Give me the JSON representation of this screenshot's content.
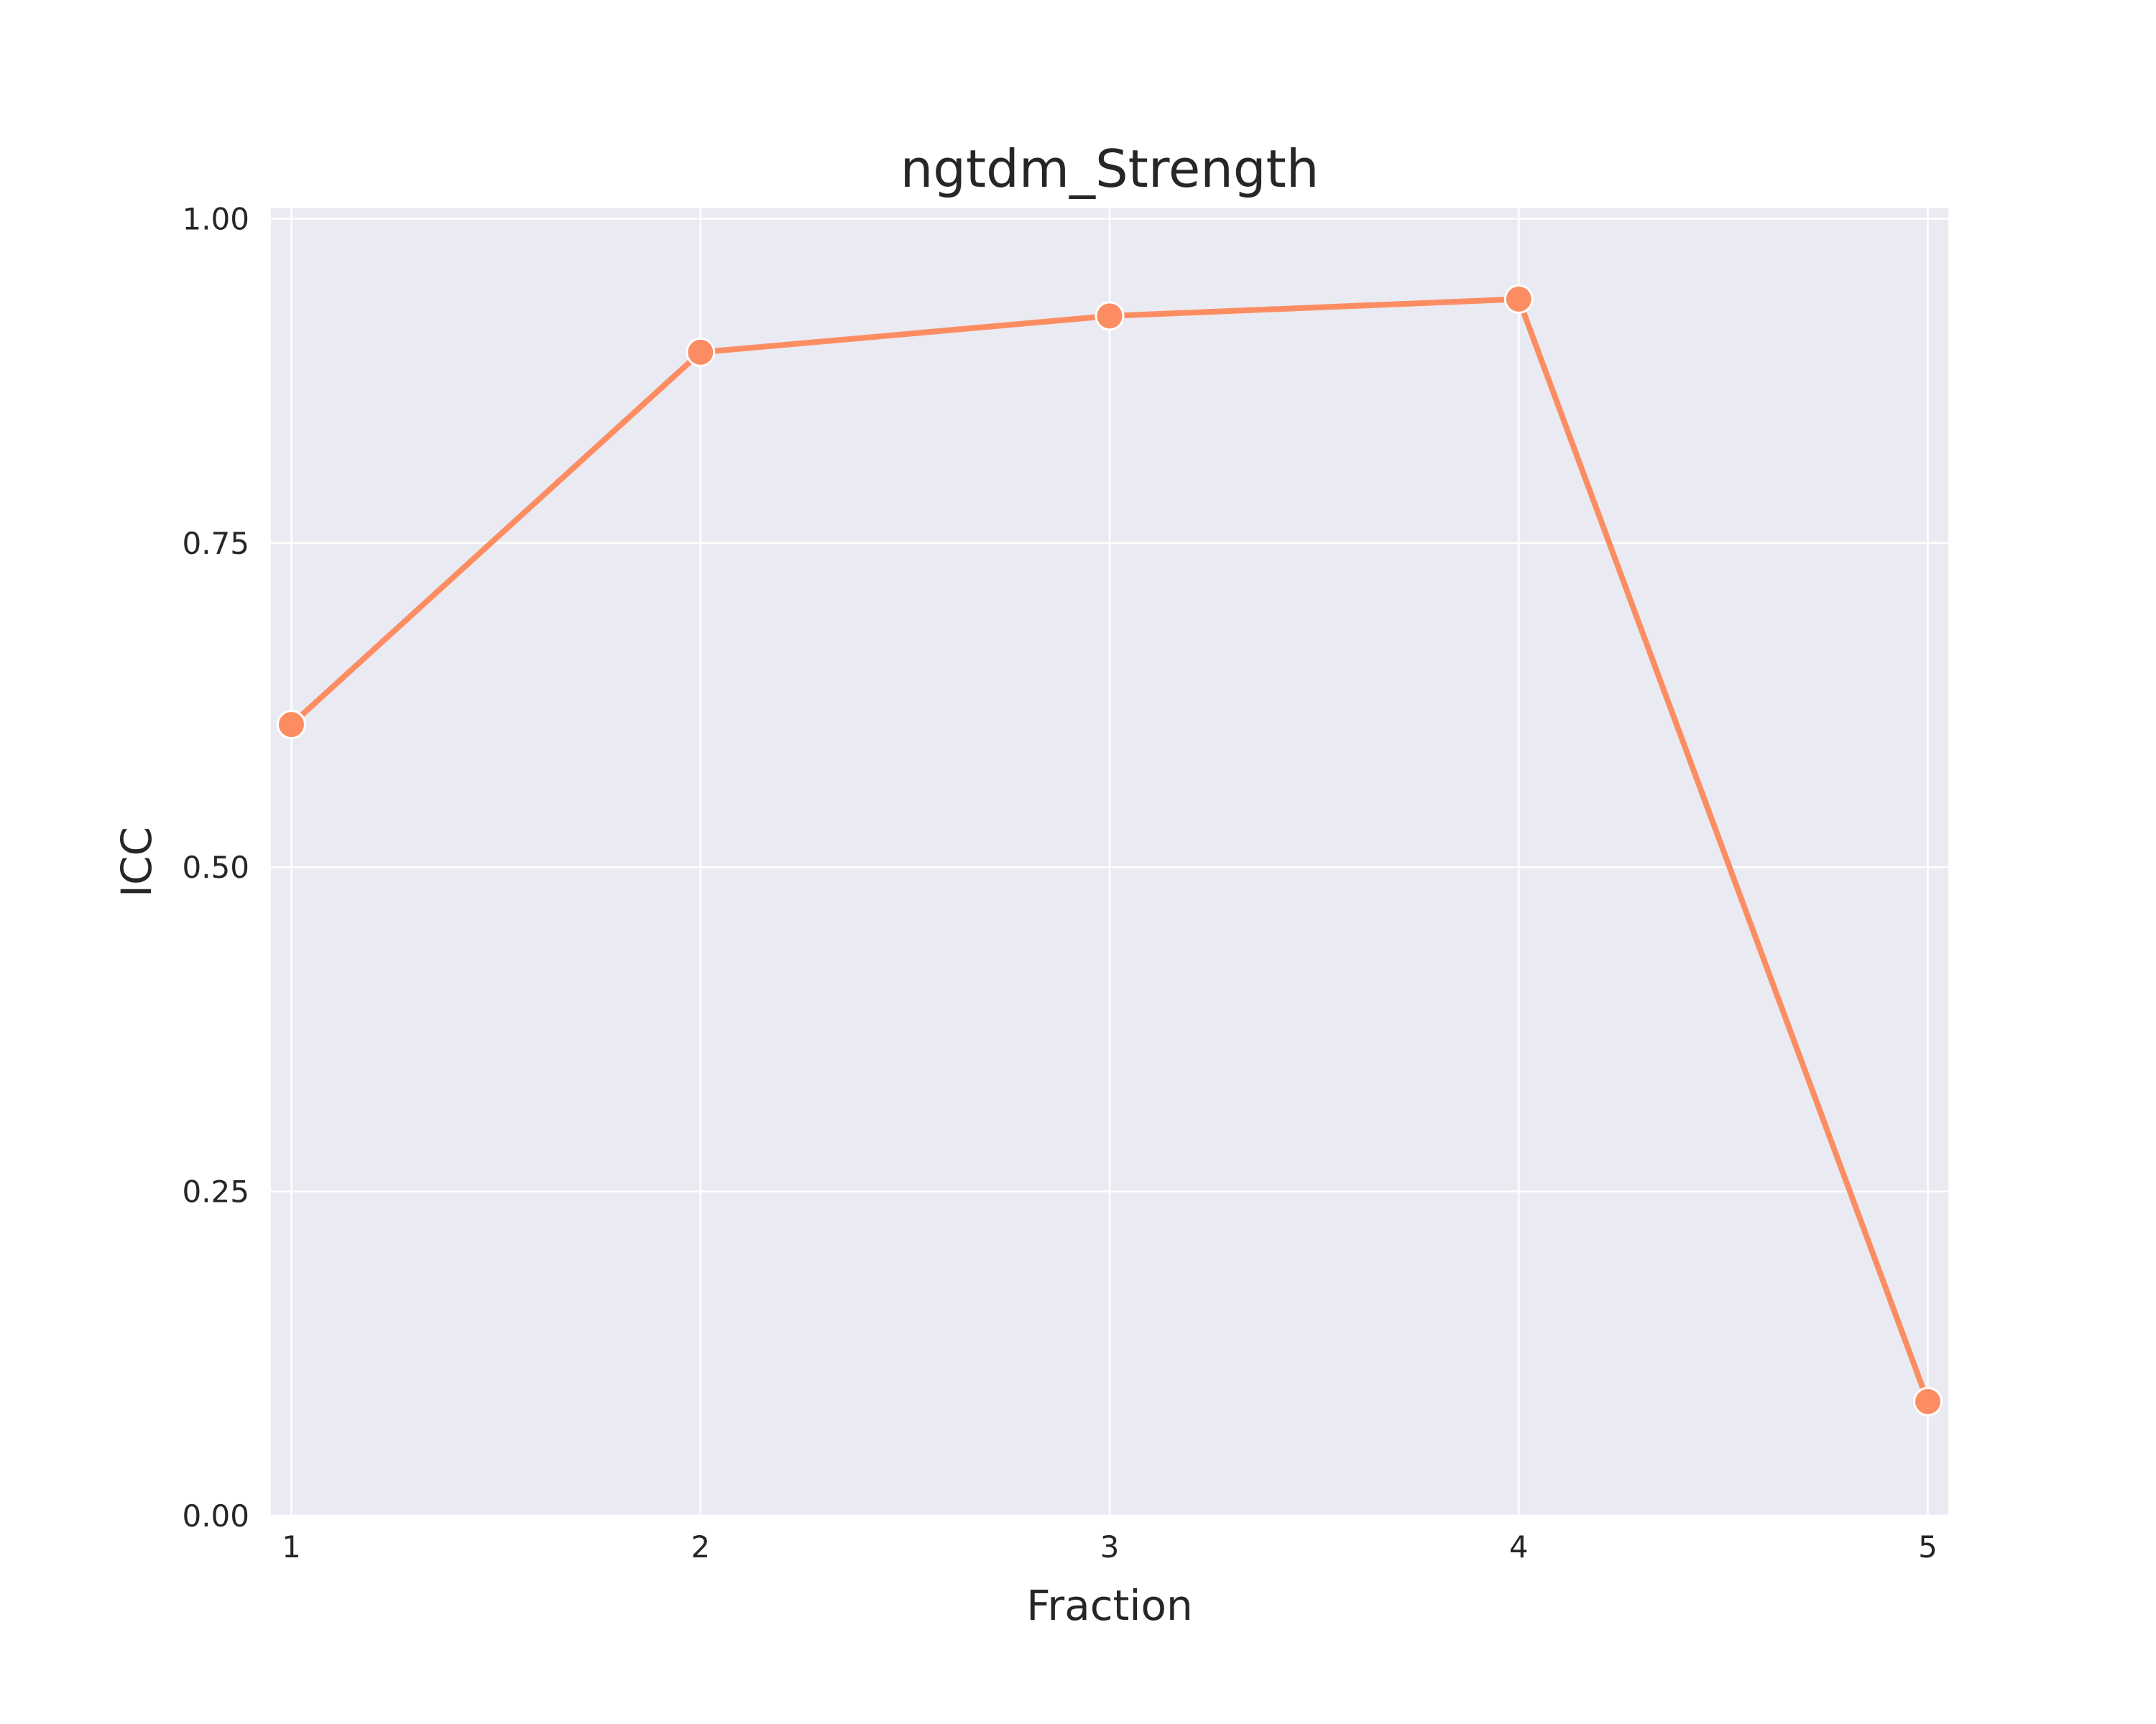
{
  "chart_data": {
    "type": "line",
    "title": "ngtdm_Strength",
    "xlabel": "Fraction",
    "ylabel": "ICC",
    "x": [
      1,
      2,
      3,
      4,
      5
    ],
    "x_tick_labels": [
      "1",
      "2",
      "3",
      "4",
      "5"
    ],
    "y_ticks": [
      0.0,
      0.25,
      0.5,
      0.75,
      1.0
    ],
    "y_tick_labels": [
      "0.00",
      "0.25",
      "0.50",
      "0.75",
      "1.00"
    ],
    "xlim": [
      0.95,
      5.05
    ],
    "ylim": [
      0.0,
      1.008
    ],
    "grid": true,
    "series": [
      {
        "values": [
          0.61,
          0.897,
          0.925,
          0.938,
          0.088
        ],
        "color": "#fc8d62"
      }
    ]
  },
  "colors": {
    "background": "#ffffff",
    "plot_background": "#eaeaf2",
    "grid": "#ffffff",
    "text": "#262626"
  }
}
